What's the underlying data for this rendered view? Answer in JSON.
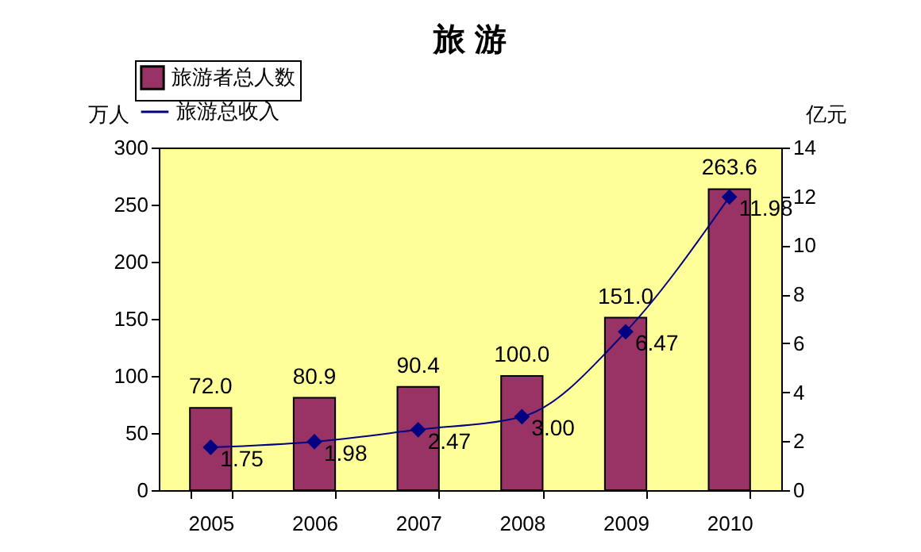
{
  "chart_data": {
    "type": "bar",
    "title": "旅 游",
    "ylabel": "万人",
    "y2label": "亿元",
    "categories": [
      "2005",
      "2006",
      "2007",
      "2008",
      "2009",
      "2010"
    ],
    "series": [
      {
        "name": "旅游者总人数",
        "color": "#993366",
        "values": [
          72.0,
          80.9,
          90.4,
          100.0,
          151.0,
          263.6
        ],
        "value_labels": [
          "72.0",
          "80.9",
          "90.4",
          "100.0",
          "151.0",
          "263.6"
        ]
      },
      {
        "name": "旅游总收入",
        "type": "line",
        "axis": "y2",
        "color": "#000080",
        "marker": "diamond",
        "values": [
          1.75,
          1.98,
          2.47,
          3.0,
          6.47,
          11.98
        ],
        "value_labels": [
          "1.75",
          "1.98",
          "2.47",
          "3.00",
          "6.47",
          "11.98"
        ]
      }
    ],
    "ylim": [
      0,
      300
    ],
    "yticks": [
      0,
      50,
      100,
      150,
      200,
      250,
      300
    ],
    "y2lim": [
      0,
      14
    ],
    "y2ticks": [
      0,
      2,
      4,
      6,
      8,
      10,
      12,
      14
    ],
    "grid": false,
    "legend": "top left"
  }
}
